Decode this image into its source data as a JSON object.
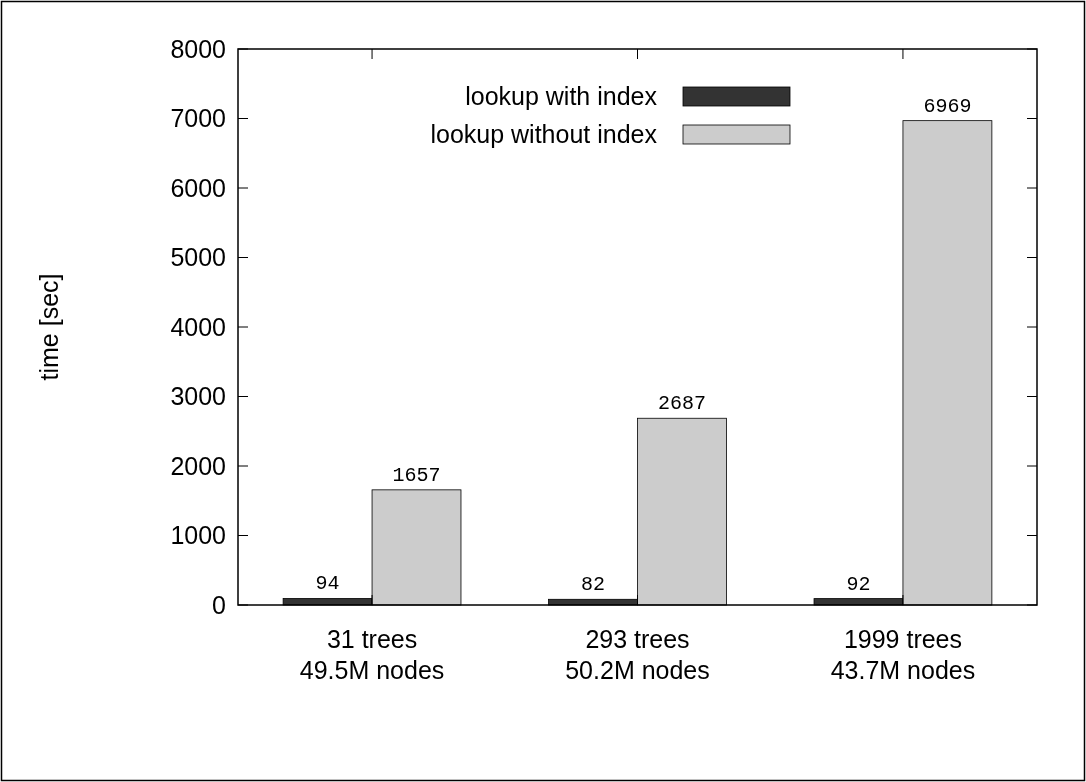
{
  "chart_data": {
    "type": "bar",
    "ylabel": "time [sec]",
    "categories": [
      "31 trees\n49.5M nodes",
      "293 trees\n50.2M nodes",
      "1999 trees\n43.7M nodes"
    ],
    "series": [
      {
        "name": "lookup with index",
        "color": "#333333",
        "values": [
          94,
          82,
          92
        ]
      },
      {
        "name": "lookup without index",
        "color": "#cccccc",
        "values": [
          1657,
          2687,
          6969
        ]
      }
    ],
    "ylim": [
      0,
      8000
    ],
    "yticks": [
      0,
      1000,
      2000,
      3000,
      4000,
      5000,
      6000,
      7000,
      8000
    ],
    "data_labels": true,
    "legend": "top right",
    "grid": false
  }
}
